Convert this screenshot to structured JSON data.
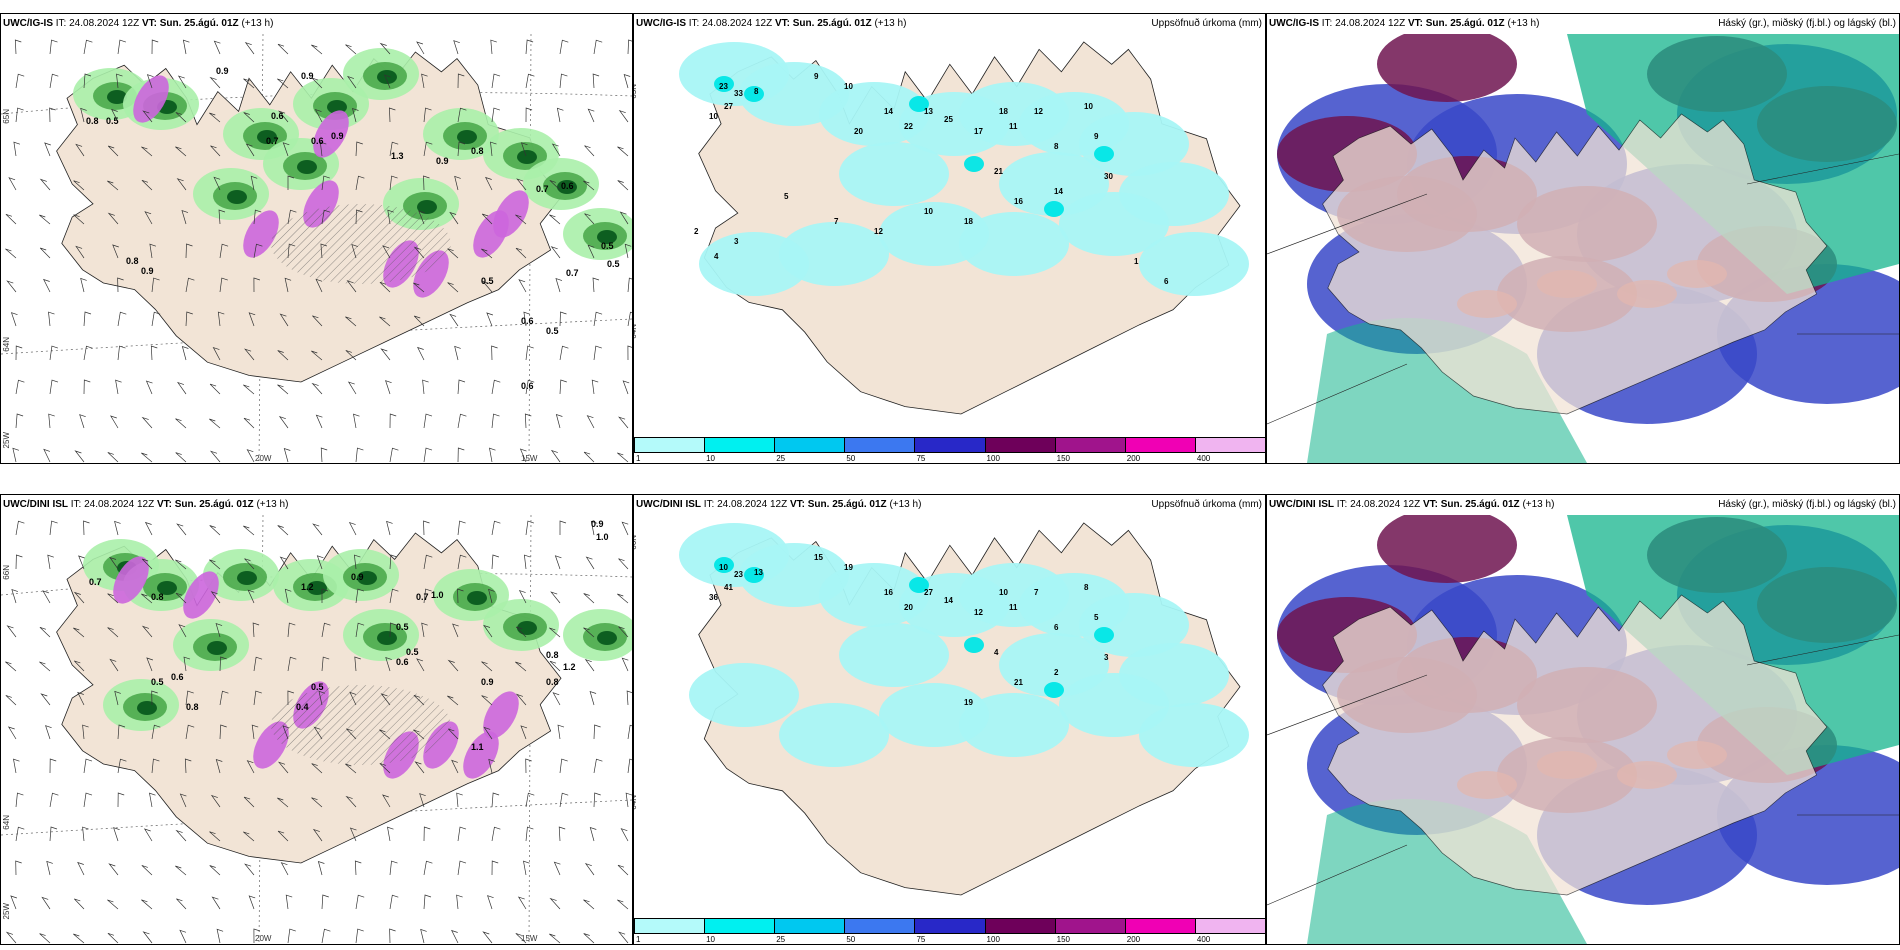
{
  "rows": [
    {
      "model": "UWC/IG-IS",
      "it_label": "IT:",
      "it_value": "24.08.2024 12Z",
      "vt_label": "VT:",
      "vt_value": "Sun. 25.ágú. 01Z",
      "lead": "(+13 h)",
      "coords": {
        "lat1": "65N",
        "lat2": "64N",
        "lon1": "20W",
        "lon2": "15W",
        "lon3": "25W"
      },
      "rain_labels": [
        "0.9",
        "0.8",
        "0.6",
        "0.5",
        "0.9",
        "0.7",
        "0.6",
        "0.9",
        "1.3",
        "0.8",
        "0.9",
        "0.7",
        "0.6",
        "0.5",
        "0.8",
        "0.9",
        "0.5",
        "0.6",
        "0.5",
        "0.5",
        "0.7",
        "0.6"
      ],
      "accum_labels": [
        "23",
        "33",
        "27",
        "10",
        "8",
        "9",
        "10",
        "14",
        "22",
        "13",
        "25",
        "17",
        "18",
        "11",
        "12",
        "10",
        "9",
        "8",
        "21",
        "30",
        "14",
        "16",
        "18",
        "10",
        "12",
        "7",
        "5",
        "3",
        "4",
        "2",
        "1",
        "6",
        "20"
      ]
    },
    {
      "model": "UWC/DINI ISL",
      "it_label": "IT:",
      "it_value": "24.08.2024 12Z",
      "vt_label": "VT:",
      "vt_value": "Sun. 25.ágú. 01Z",
      "lead": "(+13 h)",
      "coords": {
        "lat1": "66N",
        "lat2": "64N",
        "lon1": "20W",
        "lon2": "15W",
        "lon3": "25W"
      },
      "rain_labels": [
        "0.9",
        "1.0",
        "0.7",
        "0.8",
        "0.5",
        "0.6",
        "0.8",
        "1.2",
        "0.9",
        "0.5",
        "0.7",
        "1.0",
        "0.5",
        "0.6",
        "0.4",
        "0.5",
        "1.1",
        "0.9",
        "0.8",
        "0.8",
        "1.2"
      ],
      "accum_labels": [
        "10",
        "23",
        "41",
        "36",
        "13",
        "15",
        "19",
        "16",
        "20",
        "27",
        "14",
        "12",
        "10",
        "11",
        "7",
        "8",
        "5",
        "6",
        "4",
        "3",
        "2",
        "21",
        "19"
      ]
    }
  ],
  "panels": {
    "accum_title": "Uppsöfnuð úrkoma (mm)",
    "cloud_title": "Háský (gr.), miðský (fj.bl.) og lágský (bl.)"
  },
  "colorbar": {
    "ticks": [
      "1",
      "10",
      "25",
      "50",
      "75",
      "100",
      "150",
      "200",
      "400"
    ],
    "colors": [
      "#b4fafa",
      "#00f0f0",
      "#00c8f0",
      "#3c78f0",
      "#2828c8",
      "#6e005a",
      "#a0148c",
      "#f000b4",
      "#f0b4f0"
    ]
  },
  "map_colors": {
    "land": "#f2e4d6",
    "coast": "#222222",
    "cyan": "#a8f6f6",
    "green_light": "#aaf0aa",
    "green_mid": "#4caa4c",
    "green_dark": "#0a5a1e",
    "magenta": "#cc66dd",
    "high": "#6e1450",
    "mid": "#3848c8",
    "low": "#14b48c"
  }
}
